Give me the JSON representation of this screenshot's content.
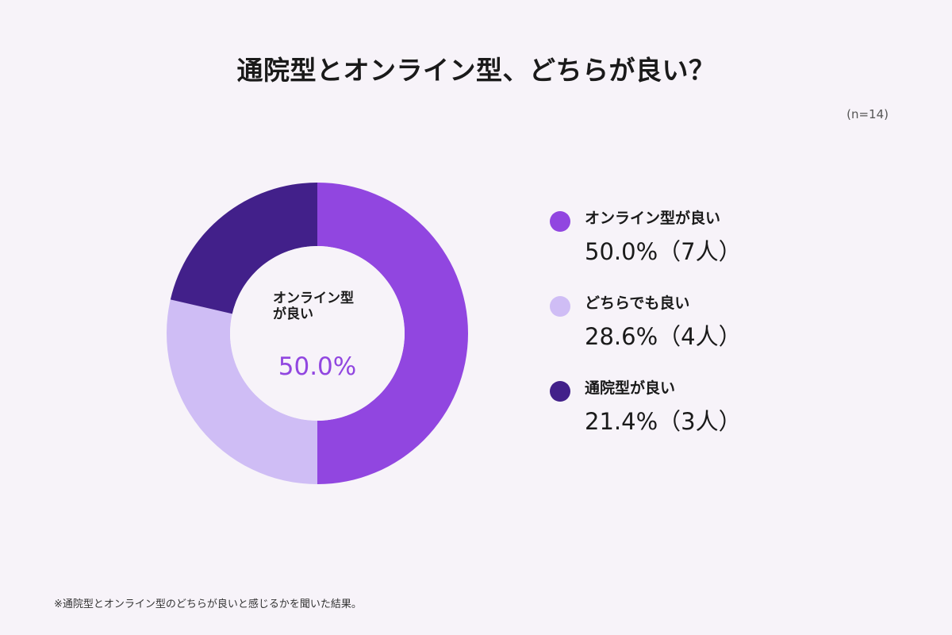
{
  "title": "通院型とオンライン型、どちらが良い？",
  "sample_size": "(n=14)",
  "footnote": "※通院型とオンライン型のどちらが良いと感じるかを聞いた結果。",
  "center": {
    "label": "オンライン型\nが良い",
    "value": "50.0%"
  },
  "chart_data": {
    "type": "pie",
    "donut": true,
    "title": "通院型とオンライン型、どちらが良い？",
    "slices": [
      {
        "label": "オンライン型が良い",
        "value": 50.0,
        "count": 7,
        "display": "50.0%（7人）",
        "color": "#9146e0"
      },
      {
        "label": "どちらでも良い",
        "value": 28.6,
        "count": 4,
        "display": "28.6%（4人）",
        "color": "#cfbdf5"
      },
      {
        "label": "通院型が良い",
        "value": 21.4,
        "count": 3,
        "display": "21.4%（3人）",
        "color": "#42208a"
      }
    ]
  }
}
